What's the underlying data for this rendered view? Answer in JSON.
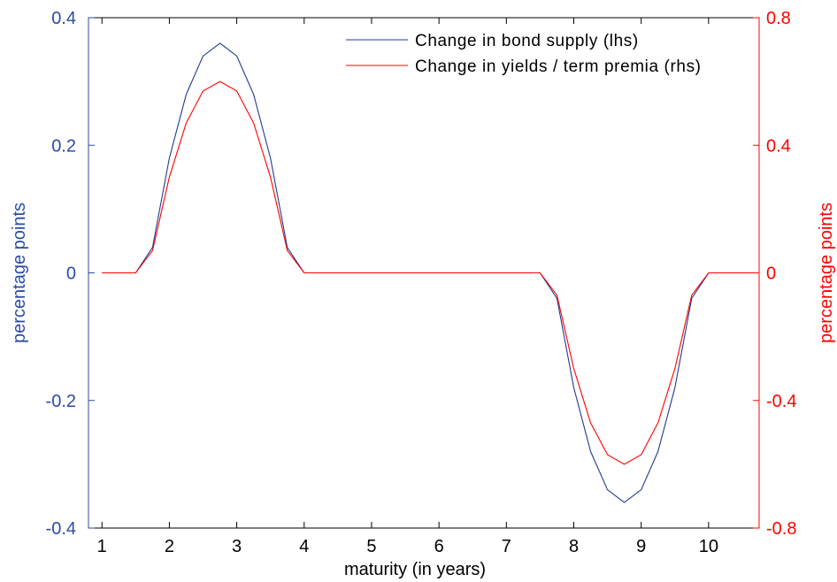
{
  "chart_data": {
    "type": "line",
    "title": "",
    "xlabel": "maturity (in years)",
    "ylabel_left": "percentage points",
    "ylabel_right": "percentage points",
    "xlim": [
      0.8,
      10.75
    ],
    "ylim_left": [
      -0.4,
      0.4
    ],
    "ylim_right": [
      -0.8,
      0.8
    ],
    "x_ticks": [
      1,
      2,
      3,
      4,
      5,
      6,
      7,
      8,
      9,
      10
    ],
    "y_ticks_left": [
      "-0.4",
      "-0.2",
      "0",
      "0.2",
      "0.4"
    ],
    "y_ticks_right": [
      "-0.8",
      "-0.4",
      "0",
      "0.4",
      "0.8"
    ],
    "grid": false,
    "legend_position": "top-right",
    "x": [
      1,
      1.25,
      1.5,
      1.75,
      2,
      2.25,
      2.5,
      2.75,
      3,
      3.25,
      3.5,
      3.75,
      4,
      4.25,
      4.5,
      4.75,
      5,
      5.25,
      5.5,
      5.75,
      6,
      6.25,
      6.5,
      6.75,
      7,
      7.25,
      7.5,
      7.75,
      8,
      8.25,
      8.5,
      8.75,
      9,
      9.25,
      9.5,
      9.75,
      10,
      10.25,
      10.5,
      10.75
    ],
    "series": [
      {
        "name": "Change in bond supply (lhs)",
        "axis": "left",
        "color": "#1f3a93",
        "values": [
          0,
          0,
          0,
          0.04,
          0.18,
          0.28,
          0.34,
          0.36,
          0.34,
          0.28,
          0.18,
          0.04,
          0,
          0,
          0,
          0,
          0,
          0,
          0,
          0,
          0,
          0,
          0,
          0,
          0,
          0,
          0,
          -0.04,
          -0.18,
          -0.28,
          -0.34,
          -0.36,
          -0.34,
          -0.28,
          -0.18,
          -0.04,
          0,
          0,
          0,
          0
        ]
      },
      {
        "name": "Change in yields / term premia (rhs)",
        "axis": "right",
        "color": "#ff0000",
        "values": [
          0,
          0,
          0,
          0.07,
          0.3,
          0.47,
          0.57,
          0.6,
          0.57,
          0.47,
          0.3,
          0.07,
          0,
          0,
          0,
          0,
          0,
          0,
          0,
          0,
          0,
          0,
          0,
          0,
          0,
          0,
          0,
          -0.07,
          -0.3,
          -0.47,
          -0.57,
          -0.6,
          -0.57,
          -0.47,
          -0.3,
          -0.07,
          0,
          0,
          0,
          0
        ]
      }
    ],
    "colors": {
      "left_axis": "#2b4ba8",
      "right_axis": "#ff0000",
      "frame": "#000000"
    }
  }
}
